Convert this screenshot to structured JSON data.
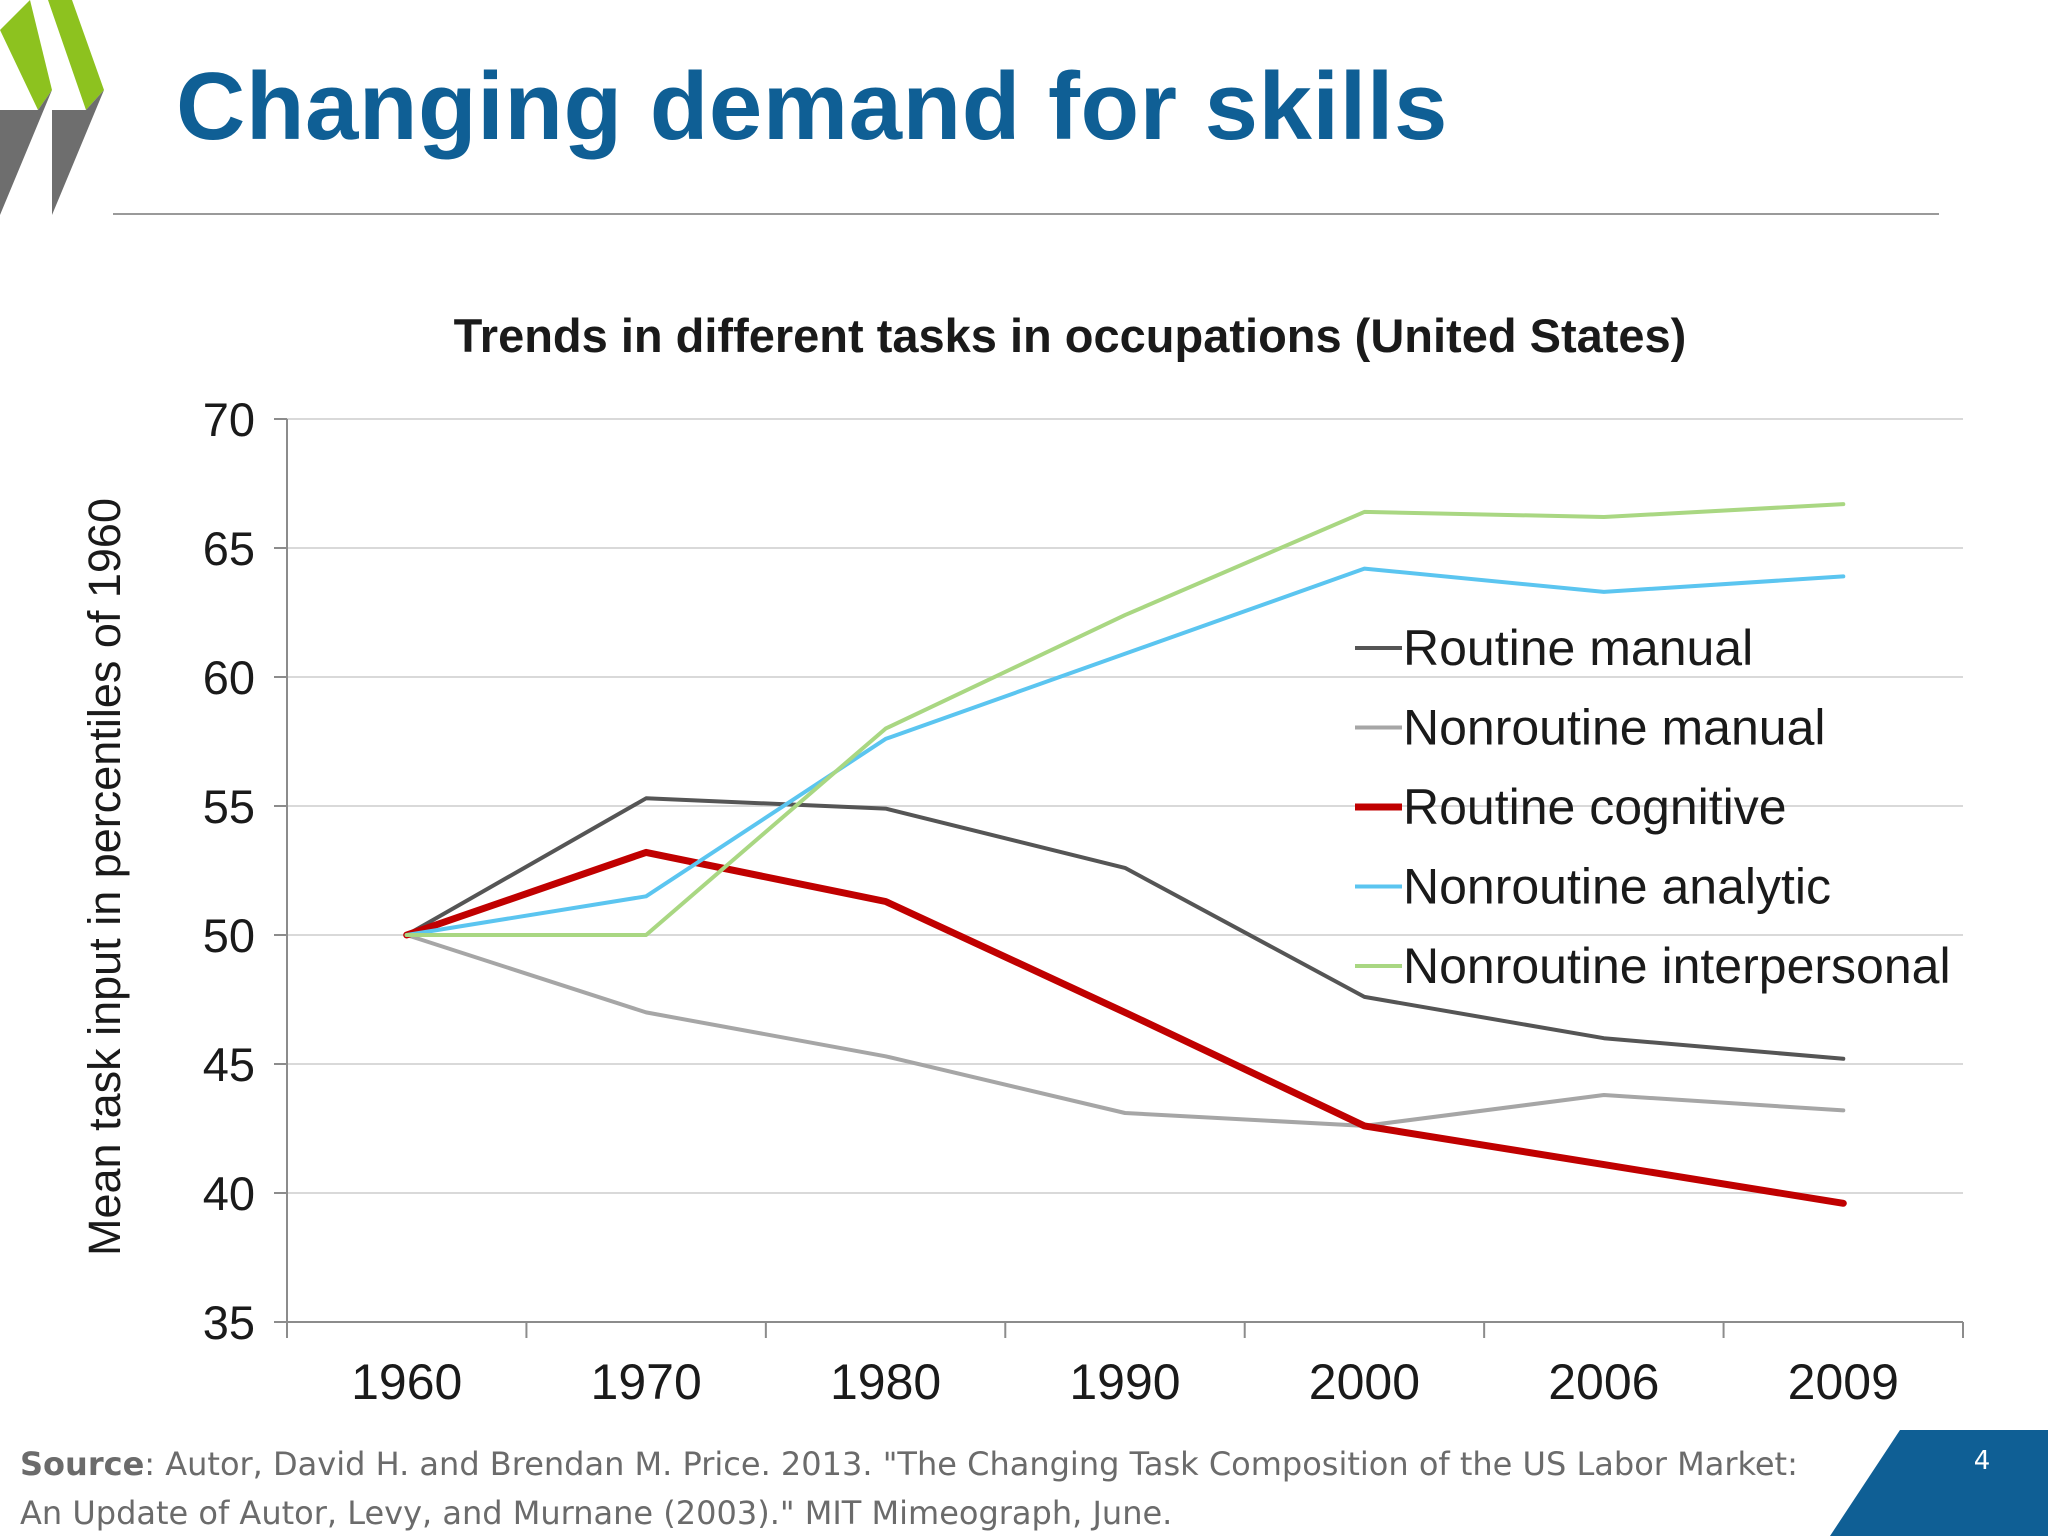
{
  "slide": {
    "title": "Changing demand for skills",
    "page_number": "4",
    "accent_color": "#0f5f95",
    "logo_colors": [
      "#8dc21f",
      "#6e6e6e"
    ]
  },
  "source": {
    "label": "Source",
    "text": ": Autor, David H. and Brendan M. Price. 2013. \"The Changing Task Composition of the US Labor Market: An Update of Autor, Levy, and Murnane (2003).\" MIT Mimeograph, June."
  },
  "chart_data": {
    "type": "line",
    "title": "Trends in different tasks in occupations (United States)",
    "xlabel": "",
    "ylabel": "Mean task input in percentiles of 1960",
    "categories": [
      "1960",
      "1970",
      "1980",
      "1990",
      "2000",
      "2006",
      "2009"
    ],
    "ylim": [
      35,
      70
    ],
    "yticks": [
      35,
      40,
      45,
      50,
      55,
      60,
      65,
      70
    ],
    "grid": true,
    "legend_position": "right",
    "series": [
      {
        "name": "Routine manual",
        "color": "#555555",
        "values": [
          50,
          55.3,
          54.9,
          52.6,
          47.6,
          46.0,
          45.2
        ]
      },
      {
        "name": "Nonroutine manual",
        "color": "#a6a6a6",
        "values": [
          50,
          47.0,
          45.3,
          43.1,
          42.6,
          43.8,
          43.2
        ]
      },
      {
        "name": "Routine cognitive",
        "color": "#c00000",
        "values": [
          50,
          53.2,
          51.3,
          47.0,
          42.6,
          41.1,
          39.6
        ]
      },
      {
        "name": "Nonroutine analytic",
        "color": "#5bc5f0",
        "values": [
          50,
          51.5,
          57.6,
          60.9,
          64.2,
          63.3,
          63.9
        ]
      },
      {
        "name": "Nonroutine interpersonal",
        "color": "#a9d782",
        "values": [
          50,
          50.0,
          58.0,
          62.4,
          66.4,
          66.2,
          66.7
        ]
      }
    ]
  }
}
